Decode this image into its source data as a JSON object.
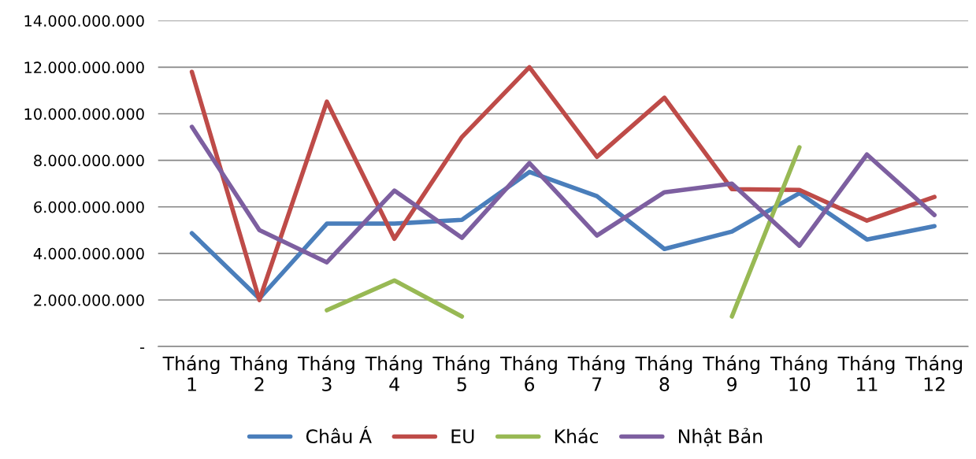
{
  "chart_data": {
    "type": "line",
    "categories": [
      "Tháng\n1",
      "Tháng\n2",
      "Tháng\n3",
      "Tháng\n4",
      "Tháng\n5",
      "Tháng\n6",
      "Tháng\n7",
      "Tháng\n8",
      "Tháng\n9",
      "Tháng\n10",
      "Tháng\n11",
      "Tháng\n12"
    ],
    "series": [
      {
        "name": "Châu Á",
        "color": "#4a7ebb",
        "values": [
          4870000000,
          2060000000,
          5280000000,
          5280000000,
          5440000000,
          7500000000,
          6460000000,
          4190000000,
          4940000000,
          6590000000,
          4600000000,
          5170000000
        ]
      },
      {
        "name": "EU",
        "color": "#be4b48",
        "values": [
          11800000000,
          2000000000,
          10520000000,
          4630000000,
          9000000000,
          12000000000,
          8150000000,
          10690000000,
          6760000000,
          6730000000,
          5410000000,
          6430000000
        ]
      },
      {
        "name": "Khác",
        "color": "#98b954",
        "values": [
          null,
          null,
          1560000000,
          2840000000,
          1290000000,
          null,
          null,
          null,
          1290000000,
          8560000000,
          null,
          null
        ]
      },
      {
        "name": "Nhật Bản",
        "color": "#7d5fa0",
        "values": [
          9440000000,
          5000000000,
          3620000000,
          6700000000,
          4670000000,
          7880000000,
          4770000000,
          6630000000,
          7000000000,
          4330000000,
          8250000000,
          5650000000
        ]
      }
    ],
    "ylim": [
      0,
      14000000000
    ],
    "yticks": [
      {
        "value": 0,
        "label": "-"
      },
      {
        "value": 2000000000,
        "label": "2.000.000.000"
      },
      {
        "value": 4000000000,
        "label": "4.000.000.000"
      },
      {
        "value": 6000000000,
        "label": "6.000.000.000"
      },
      {
        "value": 8000000000,
        "label": "8.000.000.000"
      },
      {
        "value": 10000000000,
        "label": "10.000.000.000"
      },
      {
        "value": 12000000000,
        "label": "12.000.000.000"
      },
      {
        "value": 14000000000,
        "label": "14.000.000.000"
      }
    ],
    "grid": "y",
    "legend": "bottom",
    "marker": "none",
    "line_style": "solid"
  }
}
